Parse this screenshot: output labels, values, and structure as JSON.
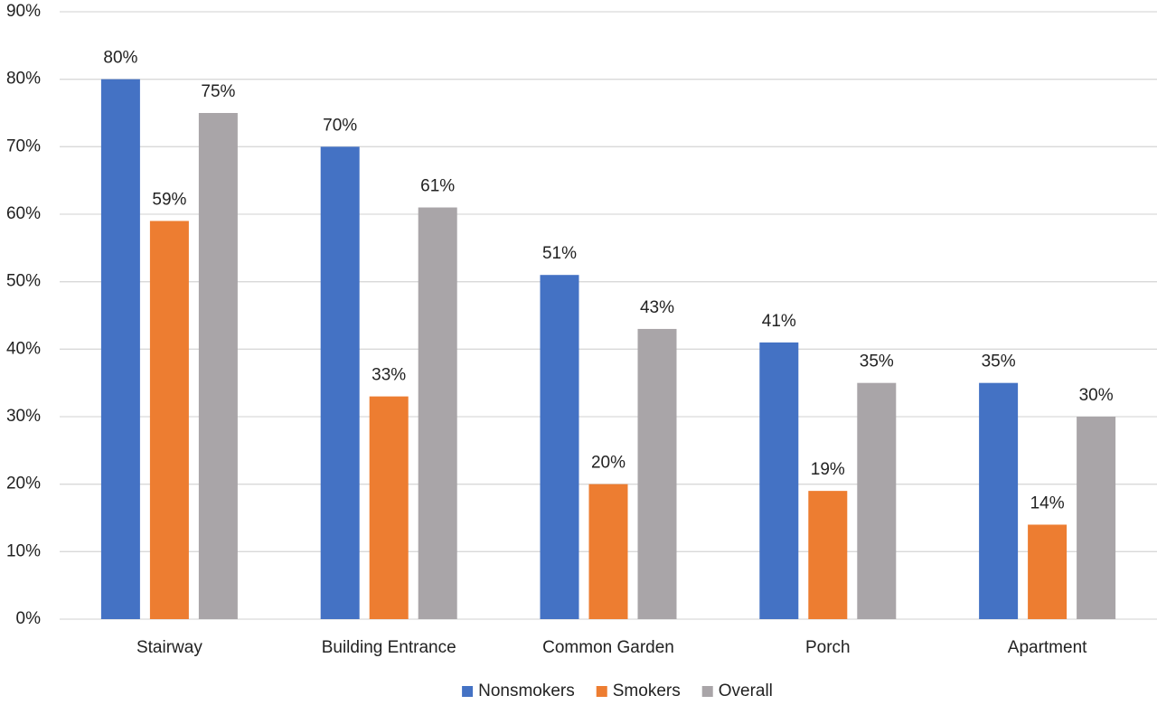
{
  "chart_data": {
    "type": "bar",
    "categories": [
      "Stairway",
      "Building Entrance",
      "Common Garden",
      "Porch",
      "Apartment"
    ],
    "series": [
      {
        "name": "Nonsmokers",
        "color": "#4472c4",
        "values": [
          80,
          70,
          51,
          41,
          35
        ],
        "value_labels": [
          "80%",
          "70%",
          "51%",
          "41%",
          "35%"
        ]
      },
      {
        "name": "Smokers",
        "color": "#ed7d31",
        "values": [
          59,
          33,
          20,
          19,
          14
        ],
        "value_labels": [
          "59%",
          "33%",
          "20%",
          "19%",
          "14%"
        ]
      },
      {
        "name": "Overall",
        "color": "#a9a5a8",
        "values": [
          75,
          61,
          43,
          35,
          30
        ],
        "value_labels": [
          "75%",
          "61%",
          "43%",
          "35%",
          "30%"
        ]
      }
    ],
    "ylim": [
      0,
      90
    ],
    "yticks": [
      {
        "value": 0,
        "label": "0%"
      },
      {
        "value": 10,
        "label": "10%"
      },
      {
        "value": 20,
        "label": "20%"
      },
      {
        "value": 30,
        "label": "30%"
      },
      {
        "value": 40,
        "label": "40%"
      },
      {
        "value": 50,
        "label": "50%"
      },
      {
        "value": 60,
        "label": "60%"
      },
      {
        "value": 70,
        "label": "70%"
      },
      {
        "value": 80,
        "label": "80%"
      },
      {
        "value": 90,
        "label": "90%"
      }
    ],
    "grid": true,
    "legend": "bottom"
  }
}
